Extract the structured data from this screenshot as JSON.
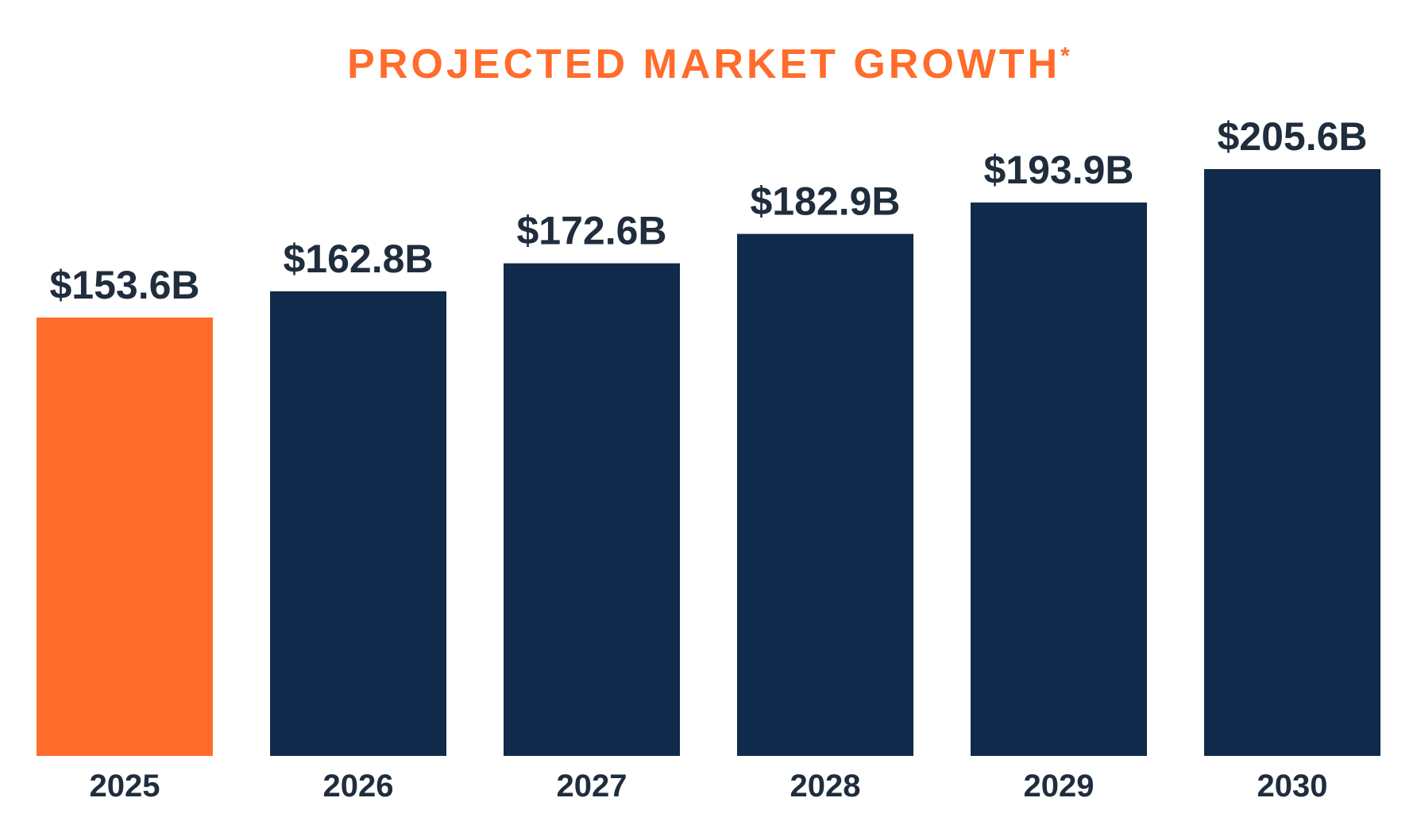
{
  "title": "PROJECTED MARKET GROWTH",
  "title_mark": "*",
  "colors": {
    "highlight": "#FF6C2C",
    "bar": "#0F2A4A",
    "label": "#1F2D3D",
    "title": "#FF6C2C"
  },
  "chart_data": {
    "type": "bar",
    "title": "PROJECTED MARKET GROWTH*",
    "categories": [
      "2025",
      "2026",
      "2027",
      "2028",
      "2029",
      "2030"
    ],
    "values": [
      153.6,
      162.8,
      172.6,
      182.9,
      193.9,
      205.6
    ],
    "data_labels": [
      "$153.6B",
      "$162.8B",
      "$172.6B",
      "$182.9B",
      "$193.9B",
      "$205.6B"
    ],
    "unit": "billion USD",
    "highlight_category": "2025",
    "xlabel": "",
    "ylabel": "",
    "ylim": [
      0,
      205.6
    ],
    "grid": false,
    "legend": "none"
  }
}
